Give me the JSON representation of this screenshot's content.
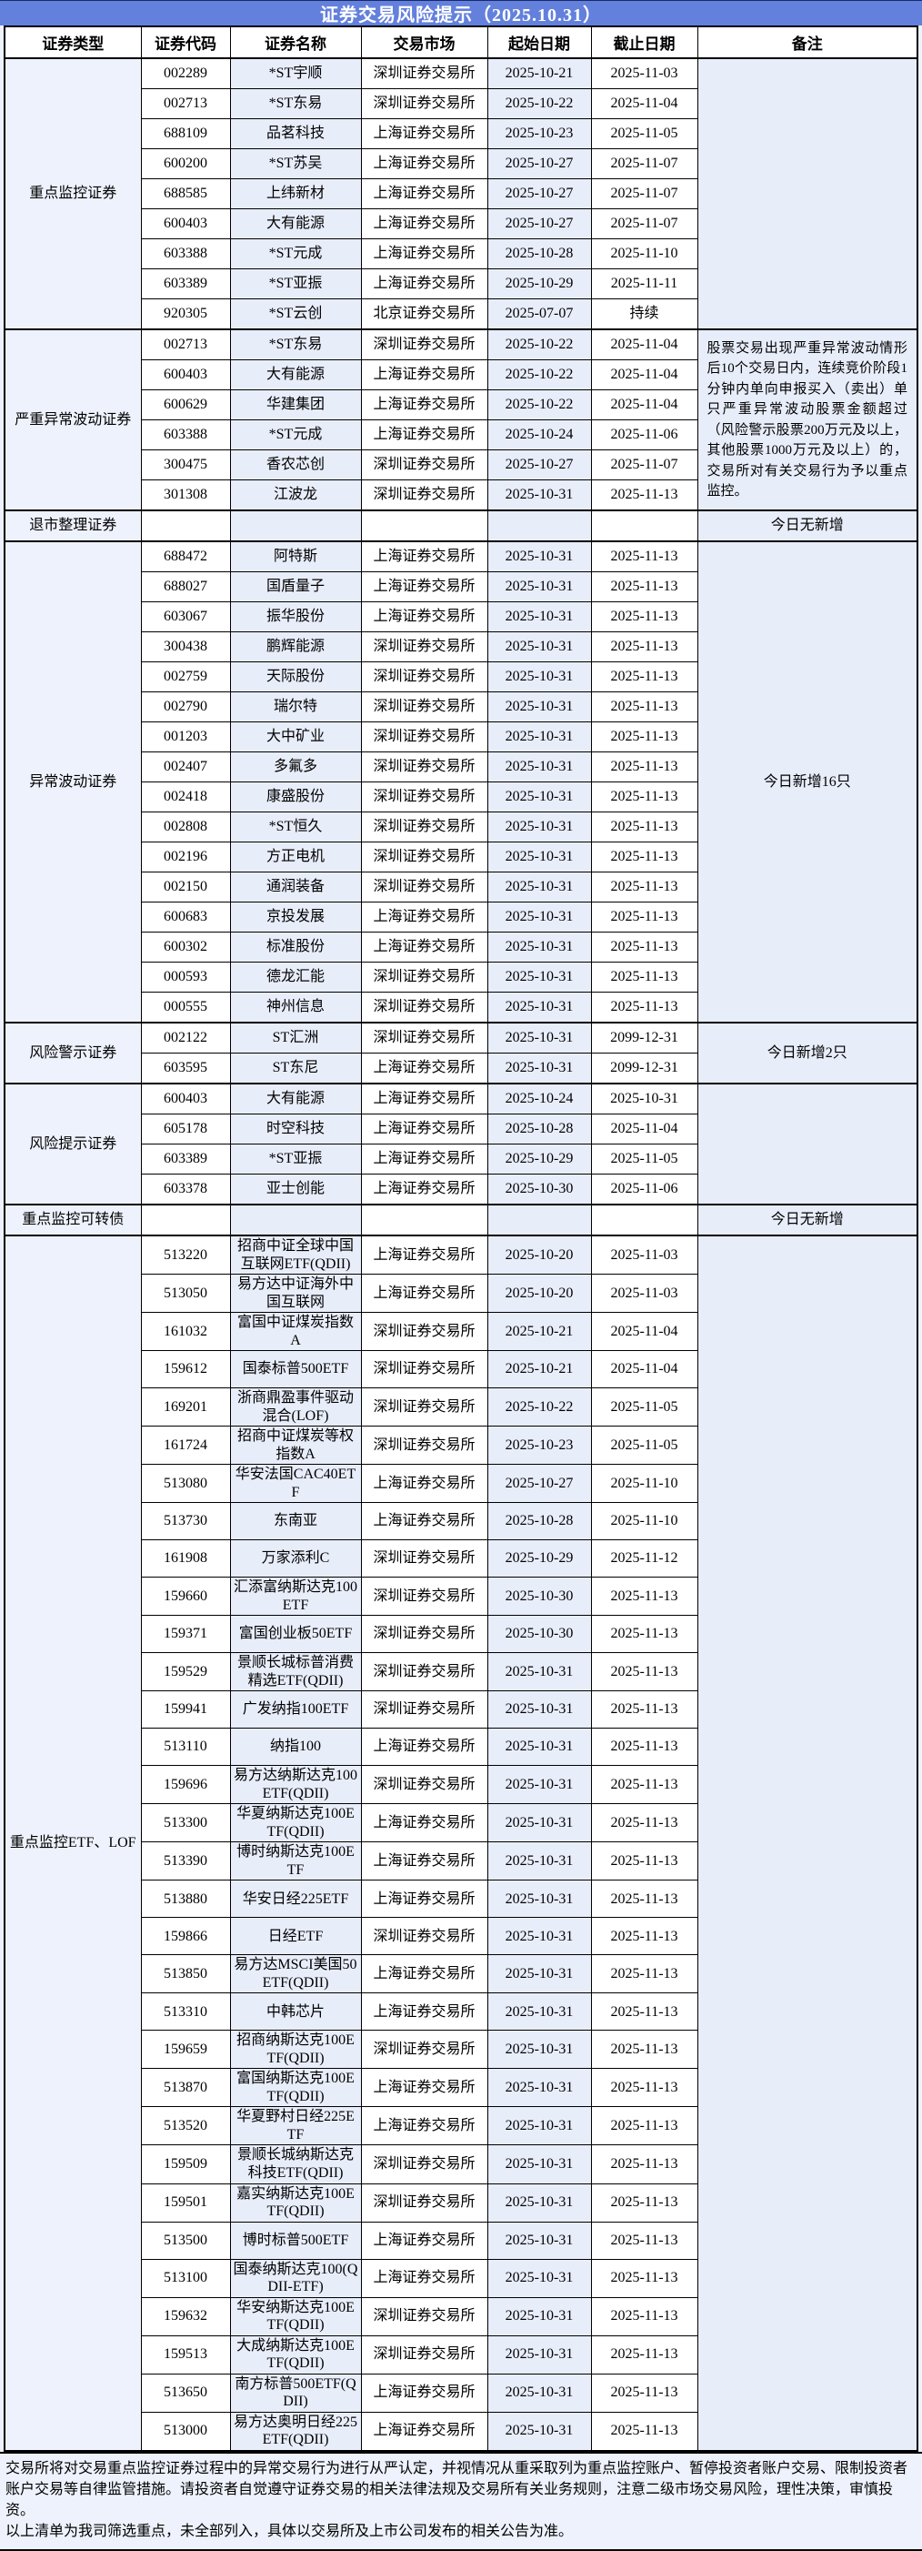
{
  "title": "证券交易风险提示（2025.10.31）",
  "columns": [
    "证券类型",
    "证券代码",
    "证券名称",
    "交易市场",
    "起始日期",
    "截止日期",
    "备注"
  ],
  "colors": {
    "title_bar": "#6380dd",
    "title_text": "#ffffff",
    "shaded_column": "#e8edfa",
    "plain_column": "#ffffff",
    "page_background": "#eef2fc",
    "border": "#000000"
  },
  "sections": [
    {
      "type": "重点监控证券",
      "remark": "",
      "rows": [
        [
          "002289",
          "*ST宇顺",
          "深圳证券交易所",
          "2025-10-21",
          "2025-11-03"
        ],
        [
          "002713",
          "*ST东易",
          "深圳证券交易所",
          "2025-10-22",
          "2025-11-04"
        ],
        [
          "688109",
          "品茗科技",
          "上海证券交易所",
          "2025-10-23",
          "2025-11-05"
        ],
        [
          "600200",
          "*ST苏吴",
          "上海证券交易所",
          "2025-10-27",
          "2025-11-07"
        ],
        [
          "688585",
          "上纬新材",
          "上海证券交易所",
          "2025-10-27",
          "2025-11-07"
        ],
        [
          "600403",
          "大有能源",
          "上海证券交易所",
          "2025-10-27",
          "2025-11-07"
        ],
        [
          "603388",
          "*ST元成",
          "上海证券交易所",
          "2025-10-28",
          "2025-11-10"
        ],
        [
          "603389",
          "*ST亚振",
          "上海证券交易所",
          "2025-10-29",
          "2025-11-11"
        ],
        [
          "920305",
          "*ST云创",
          "北京证券交易所",
          "2025-07-07",
          "持续"
        ]
      ]
    },
    {
      "type": "严重异常波动证券",
      "remark": "股票交易出现严重异常波动情形后10个交易日内，连续竞价阶段1分钟内单向申报买入（卖出）单只严重异常波动股票金额超过（风险警示股票200万元及以上，其他股票1000万元及以上）的，交易所对有关交易行为予以重点监控。",
      "rows": [
        [
          "002713",
          "*ST东易",
          "深圳证券交易所",
          "2025-10-22",
          "2025-11-04"
        ],
        [
          "600403",
          "大有能源",
          "上海证券交易所",
          "2025-10-22",
          "2025-11-04"
        ],
        [
          "600629",
          "华建集团",
          "上海证券交易所",
          "2025-10-22",
          "2025-11-04"
        ],
        [
          "603388",
          "*ST元成",
          "上海证券交易所",
          "2025-10-24",
          "2025-11-06"
        ],
        [
          "300475",
          "香农芯创",
          "深圳证券交易所",
          "2025-10-27",
          "2025-11-07"
        ],
        [
          "301308",
          "江波龙",
          "深圳证券交易所",
          "2025-10-31",
          "2025-11-13"
        ]
      ]
    },
    {
      "type": "退市整理证券",
      "remark": "今日无新增",
      "rows": [
        [
          "",
          "",
          "",
          "",
          ""
        ]
      ]
    },
    {
      "type": "异常波动证券",
      "remark": "今日新增16只",
      "rows": [
        [
          "688472",
          "阿特斯",
          "上海证券交易所",
          "2025-10-31",
          "2025-11-13"
        ],
        [
          "688027",
          "国盾量子",
          "上海证券交易所",
          "2025-10-31",
          "2025-11-13"
        ],
        [
          "603067",
          "振华股份",
          "上海证券交易所",
          "2025-10-31",
          "2025-11-13"
        ],
        [
          "300438",
          "鹏辉能源",
          "深圳证券交易所",
          "2025-10-31",
          "2025-11-13"
        ],
        [
          "002759",
          "天际股份",
          "深圳证券交易所",
          "2025-10-31",
          "2025-11-13"
        ],
        [
          "002790",
          "瑞尔特",
          "深圳证券交易所",
          "2025-10-31",
          "2025-11-13"
        ],
        [
          "001203",
          "大中矿业",
          "深圳证券交易所",
          "2025-10-31",
          "2025-11-13"
        ],
        [
          "002407",
          "多氟多",
          "深圳证券交易所",
          "2025-10-31",
          "2025-11-13"
        ],
        [
          "002418",
          "康盛股份",
          "深圳证券交易所",
          "2025-10-31",
          "2025-11-13"
        ],
        [
          "002808",
          "*ST恒久",
          "深圳证券交易所",
          "2025-10-31",
          "2025-11-13"
        ],
        [
          "002196",
          "方正电机",
          "深圳证券交易所",
          "2025-10-31",
          "2025-11-13"
        ],
        [
          "002150",
          "通润装备",
          "深圳证券交易所",
          "2025-10-31",
          "2025-11-13"
        ],
        [
          "600683",
          "京投发展",
          "上海证券交易所",
          "2025-10-31",
          "2025-11-13"
        ],
        [
          "600302",
          "标准股份",
          "上海证券交易所",
          "2025-10-31",
          "2025-11-13"
        ],
        [
          "000593",
          "德龙汇能",
          "深圳证券交易所",
          "2025-10-31",
          "2025-11-13"
        ],
        [
          "000555",
          "神州信息",
          "深圳证券交易所",
          "2025-10-31",
          "2025-11-13"
        ]
      ]
    },
    {
      "type": "风险警示证券",
      "remark": "今日新增2只",
      "rows": [
        [
          "002122",
          "ST汇洲",
          "深圳证券交易所",
          "2025-10-31",
          "2099-12-31"
        ],
        [
          "603595",
          "ST东尼",
          "上海证券交易所",
          "2025-10-31",
          "2099-12-31"
        ]
      ]
    },
    {
      "type": "风险提示证券",
      "remark": "",
      "rows": [
        [
          "600403",
          "大有能源",
          "上海证券交易所",
          "2025-10-24",
          "2025-10-31"
        ],
        [
          "605178",
          "时空科技",
          "上海证券交易所",
          "2025-10-28",
          "2025-11-04"
        ],
        [
          "603389",
          "*ST亚振",
          "上海证券交易所",
          "2025-10-29",
          "2025-11-05"
        ],
        [
          "603378",
          "亚士创能",
          "上海证券交易所",
          "2025-10-30",
          "2025-11-06"
        ]
      ]
    },
    {
      "type": "重点监控可转债",
      "remark": "今日无新增",
      "rows": [
        [
          "",
          "",
          "",
          "",
          ""
        ]
      ]
    },
    {
      "type": "重点监控ETF、LOF",
      "remark": "",
      "rows": [
        [
          "513220",
          "招商中证全球中国互联网ETF(QDII)",
          "上海证券交易所",
          "2025-10-20",
          "2025-11-03"
        ],
        [
          "513050",
          "易方达中证海外中国互联网",
          "上海证券交易所",
          "2025-10-20",
          "2025-11-03"
        ],
        [
          "161032",
          "富国中证煤炭指数A",
          "深圳证券交易所",
          "2025-10-21",
          "2025-11-04"
        ],
        [
          "159612",
          "国泰标普500ETF",
          "深圳证券交易所",
          "2025-10-21",
          "2025-11-04"
        ],
        [
          "169201",
          "浙商鼎盈事件驱动混合(LOF)",
          "深圳证券交易所",
          "2025-10-22",
          "2025-11-05"
        ],
        [
          "161724",
          "招商中证煤炭等权指数A",
          "深圳证券交易所",
          "2025-10-23",
          "2025-11-05"
        ],
        [
          "513080",
          "华安法国CAC40ETF",
          "上海证券交易所",
          "2025-10-27",
          "2025-11-10"
        ],
        [
          "513730",
          "东南亚",
          "上海证券交易所",
          "2025-10-28",
          "2025-11-10"
        ],
        [
          "161908",
          "万家添利C",
          "深圳证券交易所",
          "2025-10-29",
          "2025-11-12"
        ],
        [
          "159660",
          "汇添富纳斯达克100ETF",
          "深圳证券交易所",
          "2025-10-30",
          "2025-11-13"
        ],
        [
          "159371",
          "富国创业板50ETF",
          "深圳证券交易所",
          "2025-10-30",
          "2025-11-13"
        ],
        [
          "159529",
          "景顺长城标普消费精选ETF(QDII)",
          "深圳证券交易所",
          "2025-10-31",
          "2025-11-13"
        ],
        [
          "159941",
          "广发纳指100ETF",
          "深圳证券交易所",
          "2025-10-31",
          "2025-11-13"
        ],
        [
          "513110",
          "纳指100",
          "上海证券交易所",
          "2025-10-31",
          "2025-11-13"
        ],
        [
          "159696",
          "易方达纳斯达克100ETF(QDII)",
          "深圳证券交易所",
          "2025-10-31",
          "2025-11-13"
        ],
        [
          "513300",
          "华夏纳斯达克100ETF(QDII)",
          "上海证券交易所",
          "2025-10-31",
          "2025-11-13"
        ],
        [
          "513390",
          "博时纳斯达克100ETF",
          "上海证券交易所",
          "2025-10-31",
          "2025-11-13"
        ],
        [
          "513880",
          "华安日经225ETF",
          "上海证券交易所",
          "2025-10-31",
          "2025-11-13"
        ],
        [
          "159866",
          "日经ETF",
          "深圳证券交易所",
          "2025-10-31",
          "2025-11-13"
        ],
        [
          "513850",
          "易方达MSCI美国50ETF(QDII)",
          "上海证券交易所",
          "2025-10-31",
          "2025-11-13"
        ],
        [
          "513310",
          "中韩芯片",
          "上海证券交易所",
          "2025-10-31",
          "2025-11-13"
        ],
        [
          "159659",
          "招商纳斯达克100ETF(QDII)",
          "深圳证券交易所",
          "2025-10-31",
          "2025-11-13"
        ],
        [
          "513870",
          "富国纳斯达克100ETF(QDII)",
          "上海证券交易所",
          "2025-10-31",
          "2025-11-13"
        ],
        [
          "513520",
          "华夏野村日经225ETF",
          "上海证券交易所",
          "2025-10-31",
          "2025-11-13"
        ],
        [
          "159509",
          "景顺长城纳斯达克科技ETF(QDII)",
          "深圳证券交易所",
          "2025-10-31",
          "2025-11-13"
        ],
        [
          "159501",
          "嘉实纳斯达克100ETF(QDII)",
          "深圳证券交易所",
          "2025-10-31",
          "2025-11-13"
        ],
        [
          "513500",
          "博时标普500ETF",
          "上海证券交易所",
          "2025-10-31",
          "2025-11-13"
        ],
        [
          "513100",
          "国泰纳斯达克100(QDII-ETF)",
          "上海证券交易所",
          "2025-10-31",
          "2025-11-13"
        ],
        [
          "159632",
          "华安纳斯达克100ETF(QDII)",
          "深圳证券交易所",
          "2025-10-31",
          "2025-11-13"
        ],
        [
          "159513",
          "大成纳斯达克100ETF(QDII)",
          "深圳证券交易所",
          "2025-10-31",
          "2025-11-13"
        ],
        [
          "513650",
          "南方标普500ETF(QDII)",
          "上海证券交易所",
          "2025-10-31",
          "2025-11-13"
        ],
        [
          "513000",
          "易方达奥明日经225ETF(QDII)",
          "上海证券交易所",
          "2025-10-31",
          "2025-11-13"
        ]
      ]
    }
  ],
  "footer": {
    "line1": "交易所将对交易重点监控证券过程中的异常交易行为进行从严认定，并视情况从重采取列为重点监控账户、暂停投资者账户交易、限制投资者账户交易等自律监管措施。请投资者自觉遵守证券交易的相关法律法规及交易所有关业务规则，注意二级市场交易风险，理性决策，审慎投资。",
    "line2": "以上清单为我司筛选重点，未全部列入，具体以交易所及上市公司发布的相关公告为准。"
  }
}
